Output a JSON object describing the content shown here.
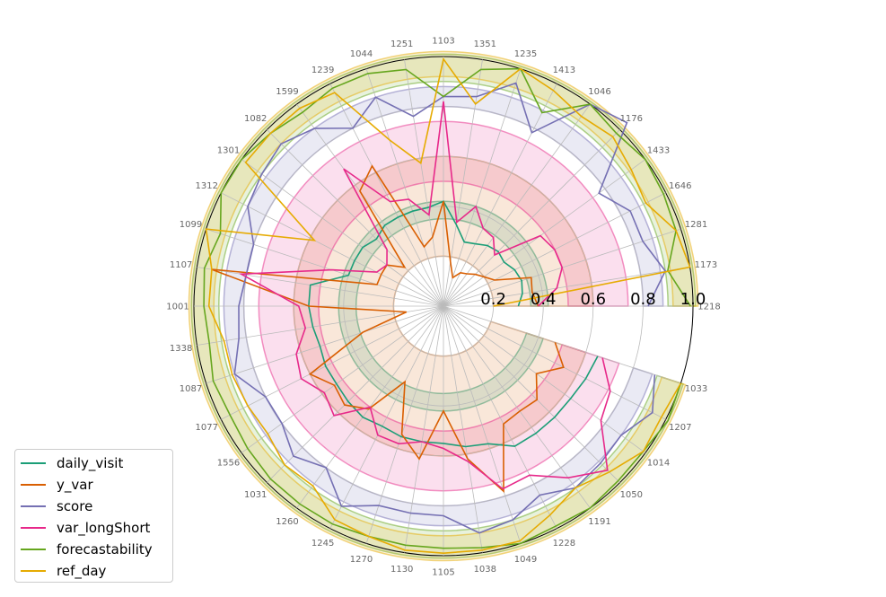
{
  "chart_data": {
    "type": "radar",
    "categories": [
      "1218",
      "1173",
      "1281",
      "1646",
      "1433",
      "1176",
      "1046",
      "1413",
      "1235",
      "1351",
      "1103",
      "1251",
      "1044",
      "1239",
      "1599",
      "1082",
      "1301",
      "1312",
      "1099",
      "1107",
      "1001",
      "1338",
      "1087",
      "1077",
      "1556",
      "1031",
      "1260",
      "1245",
      "1270",
      "1130",
      "1105",
      "1038",
      "1049",
      "1228",
      "1191",
      "1050",
      "1014",
      "1207",
      "1033"
    ],
    "gap_after_index": 0,
    "radial_ticks": [
      "0.2",
      "0.4",
      "0.6",
      "0.8",
      "1.0"
    ],
    "rlim": [
      0,
      1.0
    ],
    "series": [
      {
        "name": "daily_visit",
        "color": "#1b9e77",
        "values": [
          0.3,
          0.32,
          0.33,
          0.32,
          0.3,
          0.31,
          0.3,
          0.28,
          0.27,
          0.33,
          0.42,
          0.4,
          0.4,
          0.4,
          0.4,
          0.38,
          0.4,
          0.4,
          0.4,
          0.54,
          0.54,
          0.53,
          0.52,
          0.53,
          0.53,
          0.54,
          0.55,
          0.54,
          0.55,
          0.55,
          0.55,
          0.57,
          0.58,
          0.63,
          0.63,
          0.63,
          0.63,
          0.64,
          0.65
        ],
        "band": [
          0.35,
          0.42
        ]
      },
      {
        "name": "y_var",
        "color": "#d95f02",
        "values": [
          0.38,
          0.36,
          0.37,
          0.23,
          0.2,
          0.18,
          0.16,
          0.15,
          0.12,
          0.18,
          0.42,
          0.28,
          0.25,
          0.63,
          0.57,
          0.22,
          0.28,
          0.28,
          0.28,
          0.94,
          0.54,
          0.15,
          0.34,
          0.6,
          0.54,
          0.56,
          0.51,
          0.34,
          0.54,
          0.62,
          0.42,
          0.62,
          0.78,
          0.53,
          0.52,
          0.53,
          0.46,
          0.54,
          0.47
        ],
        "band": [
          0.2,
          0.6
        ]
      },
      {
        "name": "score",
        "color": "#7570b3",
        "values": [
          0.82,
          0.9,
          0.84,
          0.84,
          0.77,
          1.04,
          1.0,
          0.78,
          0.94,
          0.85,
          0.84,
          0.77,
          0.88,
          0.8,
          0.88,
          0.92,
          0.9,
          0.88,
          0.8,
          0.8,
          0.82,
          0.83,
          0.88,
          0.8,
          0.8,
          0.85,
          0.8,
          0.9,
          0.84,
          0.84,
          0.84,
          0.92,
          0.9,
          0.85,
          0.9,
          0.89,
          0.88,
          0.94,
          0.89
        ],
        "band": [
          0.8,
          0.88
        ]
      },
      {
        "name": "var_longShort",
        "color": "#e7298a",
        "values": [
          0.38,
          0.46,
          0.5,
          0.5,
          0.48,
          0.29,
          0.34,
          0.35,
          0.42,
          0.34,
          0.82,
          0.37,
          0.45,
          0.47,
          0.68,
          0.32,
          0.28,
          0.3,
          0.47,
          0.82,
          0.58,
          0.56,
          0.62,
          0.64,
          0.59,
          0.62,
          0.5,
          0.58,
          0.58,
          0.55,
          0.57,
          0.63,
          0.77,
          0.76,
          0.85,
          0.93,
          0.78,
          0.75,
          0.67
        ],
        "band": [
          0.5,
          0.74
        ]
      },
      {
        "name": "forecastability",
        "color": "#66a61e",
        "values": [
          0.99,
          0.91,
          0.98,
          0.99,
          1.0,
          0.98,
          1.0,
          0.87,
          1.0,
          0.96,
          0.84,
          0.96,
          0.98,
          0.98,
          0.96,
          0.98,
          1.0,
          1.0,
          0.94,
          0.97,
          0.96,
          0.95,
          0.97,
          0.96,
          0.97,
          0.98,
          0.98,
          0.98,
          0.97,
          0.97,
          0.97,
          0.98,
          1.0,
          0.99,
          1.0,
          0.99,
          0.99,
          1.01,
          1.0
        ],
        "band": [
          0.9,
          1.01
        ]
      },
      {
        "name": "ref_day",
        "color": "#e6ab02",
        "values": [
          0.2,
          1.0,
          0.98,
          0.91,
          0.93,
          0.96,
          0.94,
          0.97,
          1.0,
          0.82,
          0.99,
          0.58,
          0.7,
          0.96,
          0.98,
          0.98,
          0.98,
          0.58,
          1.0,
          0.94,
          0.94,
          0.89,
          0.89,
          0.88,
          0.87,
          0.9,
          0.89,
          0.96,
          0.97,
          0.99,
          0.99,
          0.99,
          0.99,
          0.94,
          0.9,
          0.94,
          0.99,
          0.98,
          1.0
        ],
        "band": [
          0.92,
          1.02
        ]
      }
    ]
  }
}
